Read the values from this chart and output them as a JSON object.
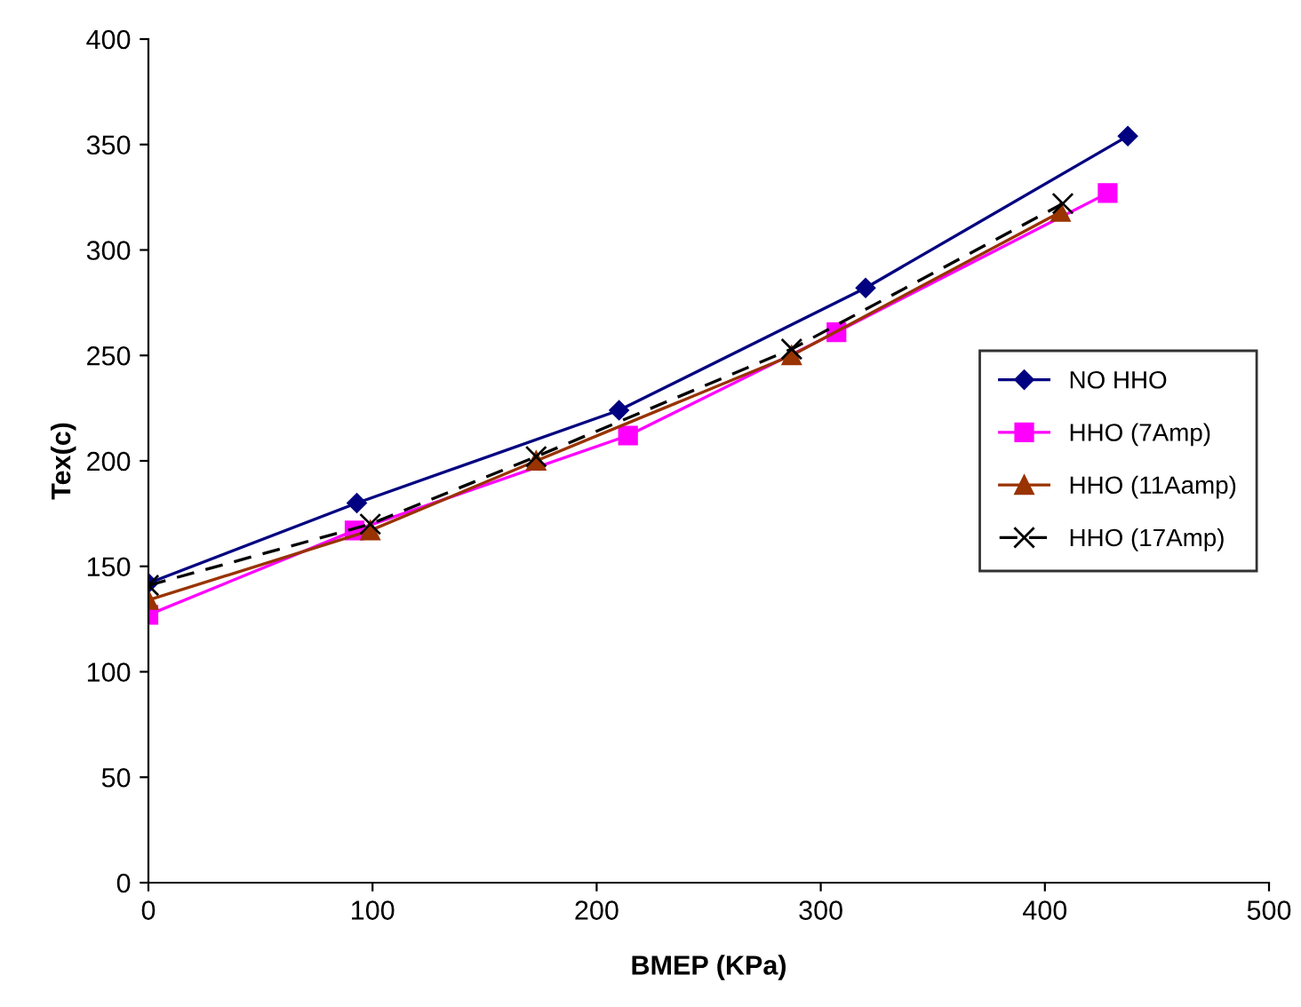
{
  "chart_data": {
    "type": "line",
    "xlabel": "BMEP (KPa)",
    "ylabel": "Tex(c)",
    "xlim": [
      0,
      500
    ],
    "xticks": [
      0,
      100,
      200,
      300,
      400,
      500
    ],
    "ylim": [
      0,
      400
    ],
    "yticks": [
      0,
      50,
      100,
      150,
      200,
      250,
      300,
      350,
      400
    ],
    "grid": false,
    "legend": "right",
    "series": [
      {
        "name": "NO HHO",
        "color": "#000080",
        "marker": "diamond",
        "line_style": "solid",
        "x": [
          0,
          93,
          210,
          320,
          437
        ],
        "values": [
          142,
          180,
          224,
          282,
          354
        ]
      },
      {
        "name": "HHO (7Amp)",
        "color": "#ff00ff",
        "marker": "square",
        "line_style": "solid",
        "x": [
          0,
          92,
          214,
          307,
          428
        ],
        "values": [
          127,
          167,
          212,
          261,
          327
        ]
      },
      {
        "name": "HHO (11Aamp)",
        "color": "#993300",
        "marker": "triangle",
        "line_style": "solid",
        "x": [
          0,
          99,
          173,
          287,
          407
        ],
        "values": [
          134,
          167,
          200,
          250,
          318
        ]
      },
      {
        "name": "HHO (17Amp)",
        "color": "#000000",
        "marker": "cross",
        "line_style": "dashed",
        "x": [
          0,
          99,
          173,
          287,
          408
        ],
        "values": [
          141,
          170,
          202,
          253,
          322
        ]
      }
    ]
  }
}
